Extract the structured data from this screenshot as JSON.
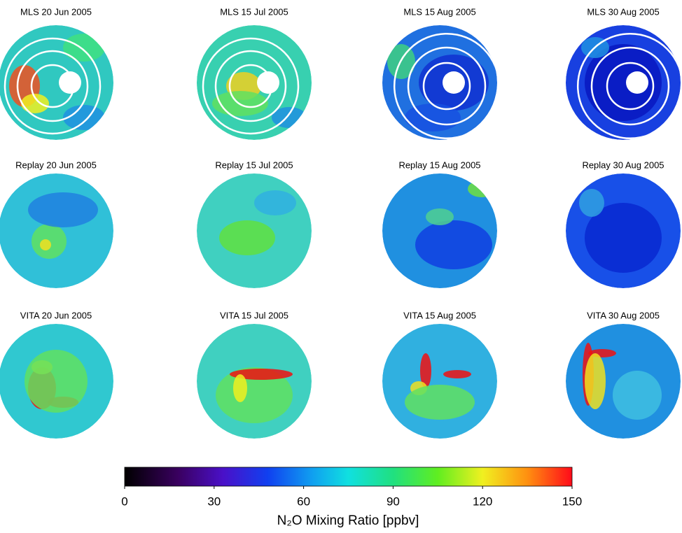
{
  "panels": [
    {
      "title": "MLS 20 Jun 2005"
    },
    {
      "title": "MLS 15 Jul 2005"
    },
    {
      "title": "MLS 15 Aug 2005"
    },
    {
      "title": "MLS 30 Aug 2005"
    },
    {
      "title": "Replay 20 Jun 2005"
    },
    {
      "title": "Replay 15 Jul 2005"
    },
    {
      "title": "Replay 15 Aug 2005"
    },
    {
      "title": "Replay 30 Aug 2005"
    },
    {
      "title": "VITA 20 Jun 2005"
    },
    {
      "title": "VITA 15 Jul 2005"
    },
    {
      "title": "VITA 15 Aug 2005"
    },
    {
      "title": "VITA 30 Aug 2005"
    }
  ],
  "colorbar": {
    "lim": [
      0,
      150
    ],
    "ticks": [
      0,
      30,
      60,
      90,
      120,
      150
    ],
    "label": "N₂O Mixing Ratio [ppbv]"
  }
}
